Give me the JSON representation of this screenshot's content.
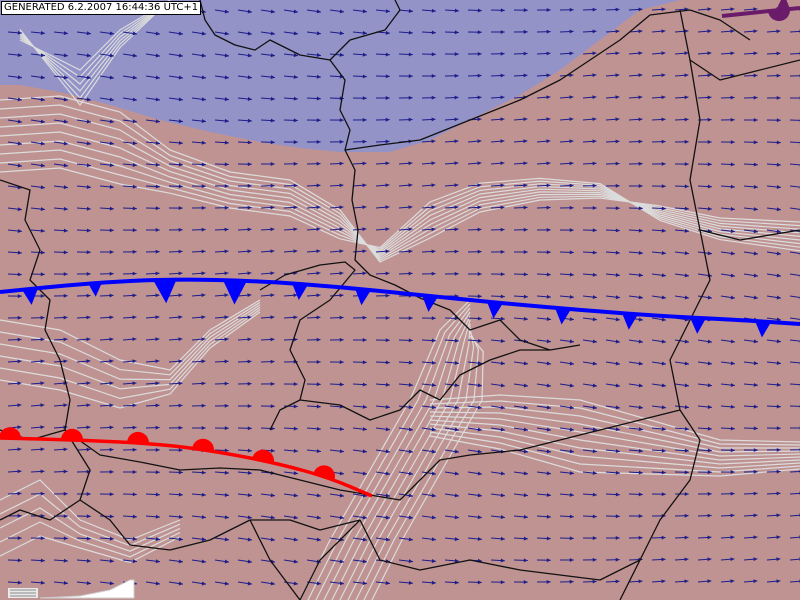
{
  "stamp": {
    "text": "GENERATED 6.2.2007 16:44:36 UTC+1"
  },
  "colors": {
    "cold_airmass": "#9393c8",
    "warm_airmass": "#c09393",
    "isolines": "#dcdcdc",
    "borders": "#111111",
    "wind_arrows": "#1c1c8a",
    "cold_front": "#0000ff",
    "warm_front": "#ff0000",
    "occluded_front": "#6a1b6a"
  },
  "fronts": [
    {
      "type": "cold",
      "direction": "south"
    },
    {
      "type": "warm",
      "direction": "north"
    },
    {
      "type": "occluded"
    }
  ],
  "wind_field": {
    "direction": "west-to-east"
  },
  "icons": [
    "scale-bar-icon"
  ]
}
